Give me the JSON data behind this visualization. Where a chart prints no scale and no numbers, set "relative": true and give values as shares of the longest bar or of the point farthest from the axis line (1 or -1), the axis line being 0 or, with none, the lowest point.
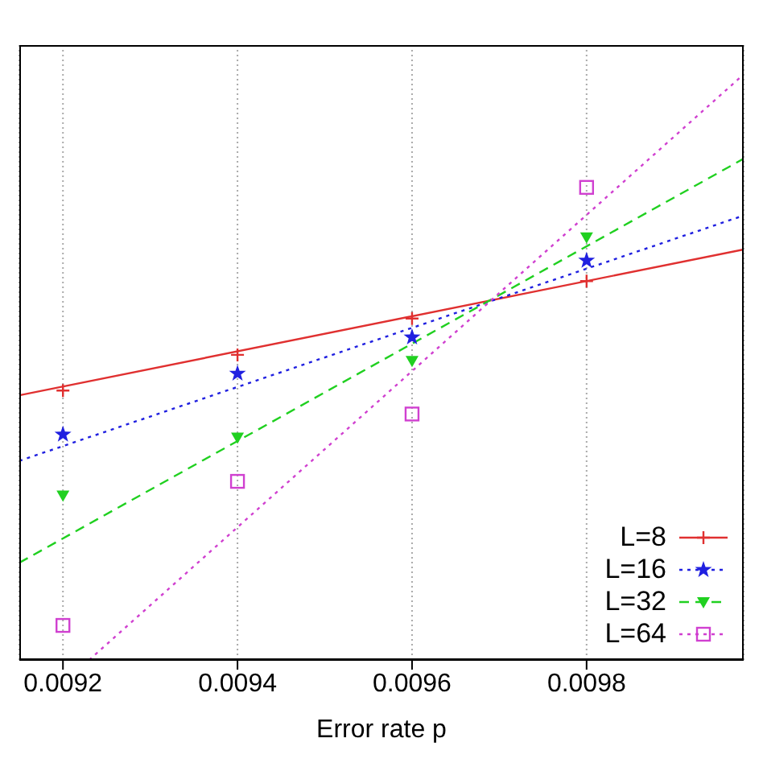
{
  "chart_data": {
    "type": "scatter",
    "xlabel": "Error rate p",
    "relative": true,
    "xlim": [
      0.00915,
      0.00998
    ],
    "xticks": [
      0.0092,
      0.0094,
      0.0096,
      0.0098
    ],
    "grid": "x",
    "legend": "bottom right",
    "series": [
      {
        "name": "L=8",
        "marker": "cross",
        "color": "#e03030",
        "x": [
          0.0092,
          0.0094,
          0.0096,
          0.0098
        ],
        "values": [
          0.46,
          0.521,
          0.583,
          0.647
        ]
      },
      {
        "name": "L=16",
        "marker": "star",
        "color": "#2020e0",
        "x": [
          0.0092,
          0.0094,
          0.0096,
          0.0098
        ],
        "values": [
          0.385,
          0.489,
          0.551,
          0.682
        ]
      },
      {
        "name": "L=32",
        "marker": "triangle",
        "color": "#20d020",
        "x": [
          0.0092,
          0.0094,
          0.0096,
          0.0098
        ],
        "values": [
          0.281,
          0.38,
          0.511,
          0.722
        ]
      },
      {
        "name": "L=64",
        "marker": "square",
        "color": "#d040d0",
        "x": [
          0.0092,
          0.0094,
          0.0096,
          0.0098
        ],
        "values": [
          0.059,
          0.305,
          0.42,
          0.807
        ]
      },
      {
        "type": "line",
        "line_style": "solid",
        "color": "#e03030",
        "x": [
          0.00915,
          0.00998
        ],
        "values": [
          0.452,
          0.701
        ]
      },
      {
        "type": "line",
        "line_style": "dotted",
        "color": "#2020e0",
        "x": [
          0.00915,
          0.00998
        ],
        "values": [
          0.34,
          0.759
        ]
      },
      {
        "type": "line",
        "line_style": "dashed",
        "color": "#20d020",
        "x": [
          0.00915,
          0.00998
        ],
        "values": [
          0.166,
          0.856
        ]
      },
      {
        "type": "line",
        "line_style": "dotted",
        "color": "#d040d0",
        "x": [
          0.00923,
          0.00998
        ],
        "values": [
          0,
          1
        ]
      }
    ]
  }
}
